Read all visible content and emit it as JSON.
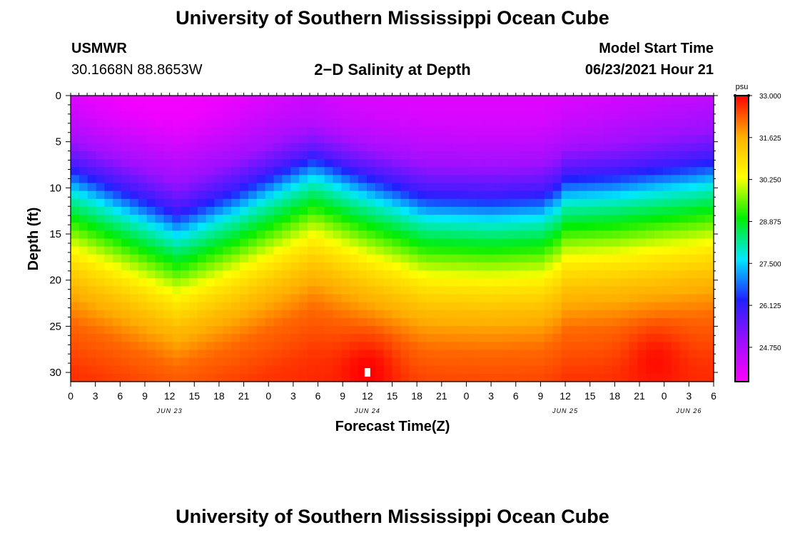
{
  "header": {
    "title": "University of Southern Mississippi Ocean Cube",
    "station": "USMWR",
    "coords": "30.1668N  88.8653W",
    "model_label": "Model Start Time",
    "model_time": "06/23/2021 Hour 21",
    "footer_title": "University of Southern Mississippi Ocean Cube"
  },
  "chart_data": {
    "type": "heatmap",
    "title": "2−D Salinity at Depth",
    "xlabel": "Forecast Time(Z)",
    "ylabel": "Depth (ft)",
    "x_range_hours": [
      0,
      78
    ],
    "ylim": [
      0,
      31
    ],
    "x_ticks": [
      {
        "h": 0,
        "label": "0"
      },
      {
        "h": 3,
        "label": "3"
      },
      {
        "h": 6,
        "label": "6"
      },
      {
        "h": 9,
        "label": "9"
      },
      {
        "h": 12,
        "label": "12"
      },
      {
        "h": 15,
        "label": "15"
      },
      {
        "h": 18,
        "label": "18"
      },
      {
        "h": 21,
        "label": "21"
      },
      {
        "h": 24,
        "label": "0"
      },
      {
        "h": 27,
        "label": "3"
      },
      {
        "h": 30,
        "label": "6"
      },
      {
        "h": 33,
        "label": "9"
      },
      {
        "h": 36,
        "label": "12"
      },
      {
        "h": 39,
        "label": "15"
      },
      {
        "h": 42,
        "label": "18"
      },
      {
        "h": 45,
        "label": "21"
      },
      {
        "h": 48,
        "label": "0"
      },
      {
        "h": 51,
        "label": "3"
      },
      {
        "h": 54,
        "label": "6"
      },
      {
        "h": 57,
        "label": "9"
      },
      {
        "h": 60,
        "label": "12"
      },
      {
        "h": 63,
        "label": "15"
      },
      {
        "h": 66,
        "label": "18"
      },
      {
        "h": 69,
        "label": "21"
      },
      {
        "h": 72,
        "label": "0"
      },
      {
        "h": 75,
        "label": "3"
      },
      {
        "h": 78,
        "label": "6"
      }
    ],
    "date_labels": [
      {
        "h": 12,
        "label": "JUN 23"
      },
      {
        "h": 36,
        "label": "JUN 24"
      },
      {
        "h": 60,
        "label": "JUN 25"
      },
      {
        "h": 75,
        "label": "JUN 26"
      }
    ],
    "y_ticks": [
      0,
      5,
      10,
      15,
      20,
      25,
      30
    ],
    "colorbar": {
      "unit": "psu",
      "min": 23.625,
      "max": 33.0,
      "tick_values": [
        33.0,
        31.625,
        30.25,
        28.875,
        27.5,
        26.125,
        24.75
      ],
      "tick_labels": [
        "33.000",
        "31.625",
        "30.250",
        "28.875",
        "27.500",
        "26.125",
        "24.750"
      ],
      "colors": [
        "#ff00ff",
        "#9b10ff",
        "#2020ff",
        "#00e8ff",
        "#00ee00",
        "#ffff00",
        "#ffb000",
        "#ff0000"
      ]
    },
    "ridges_depth_ft": [
      {
        "h": 0,
        "d": 7.5
      },
      {
        "h": 13,
        "d": 12.5
      },
      {
        "h": 20,
        "d": 10
      },
      {
        "h": 29.5,
        "d": 6
      },
      {
        "h": 35,
        "d": 8
      },
      {
        "h": 43,
        "d": 10.5
      },
      {
        "h": 51,
        "d": 10.8
      },
      {
        "h": 57,
        "d": 10.5
      },
      {
        "h": 59,
        "d": 9.5
      },
      {
        "h": 60,
        "d": 8.5
      },
      {
        "h": 66,
        "d": 8.2
      },
      {
        "h": 72,
        "d": 7.5
      },
      {
        "h": 75,
        "d": 7.2
      },
      {
        "h": 78,
        "d": 6.8
      }
    ],
    "salinity_profile": [
      {
        "offset_ft": -10,
        "psu": 24.0
      },
      {
        "offset_ft": -3,
        "psu": 25.0
      },
      {
        "offset_ft": 0,
        "psu": 26.0
      },
      {
        "offset_ft": 3,
        "psu": 27.8
      },
      {
        "offset_ft": 7,
        "psu": 29.5
      },
      {
        "offset_ft": 10,
        "psu": 30.7
      },
      {
        "offset_ft": 13,
        "psu": 31.5
      },
      {
        "offset_ft": 17,
        "psu": 32.2
      },
      {
        "offset_ft": 22,
        "psu": 32.6
      },
      {
        "offset_ft": 30,
        "psu": 32.9
      }
    ],
    "surface_fresh_spots": [
      {
        "h": 10,
        "d": 0,
        "psu": 23.7
      },
      {
        "h": 37,
        "d": 0,
        "psu": 24.1
      },
      {
        "h": 55,
        "d": 0,
        "psu": 24.1
      }
    ],
    "high_salinity_spots": [
      {
        "h": 36,
        "d": 30,
        "psu": 33.0
      },
      {
        "h": 71,
        "d": 29,
        "psu": 32.9
      }
    ],
    "marker": {
      "h": 36,
      "d": 30
    }
  }
}
